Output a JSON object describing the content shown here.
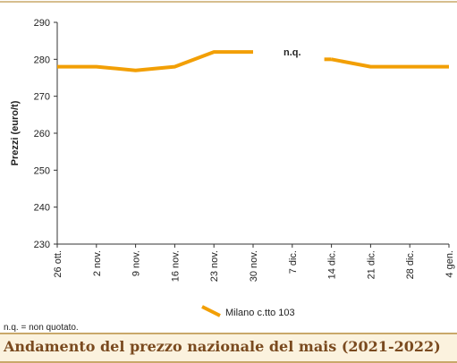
{
  "chart_data": {
    "type": "line",
    "ylabel": "Prezzi (euro/t)",
    "xlabel": "",
    "ylim": [
      230,
      290
    ],
    "yticks": [
      230,
      240,
      250,
      260,
      270,
      280,
      290
    ],
    "categories": [
      "26 ott.",
      "2 nov.",
      "9 nov.",
      "16 nov.",
      "23 nov.",
      "30 nov.",
      "7 dic.",
      "14 dic.",
      "21 dic.",
      "28 dic.",
      "4 gen."
    ],
    "series": [
      {
        "name": "Milano  c.tto 103",
        "color": "#f29f05",
        "values": [
          278,
          278,
          277,
          278,
          282,
          282,
          null,
          280,
          278,
          278,
          278
        ]
      }
    ],
    "annotations": [
      {
        "text": "n.q.",
        "category": "7 dic.",
        "y": 282
      }
    ],
    "grid": false,
    "legend": "bottom-center"
  },
  "footnote": "n.q. = non quotato.",
  "title": "Andamento del prezzo nazionale del mais (2021-2022)",
  "colors": {
    "line": "#f29f05",
    "title_text": "#7a4a1f",
    "title_bg": "#fbf2de",
    "rule": "#c9a86a"
  }
}
